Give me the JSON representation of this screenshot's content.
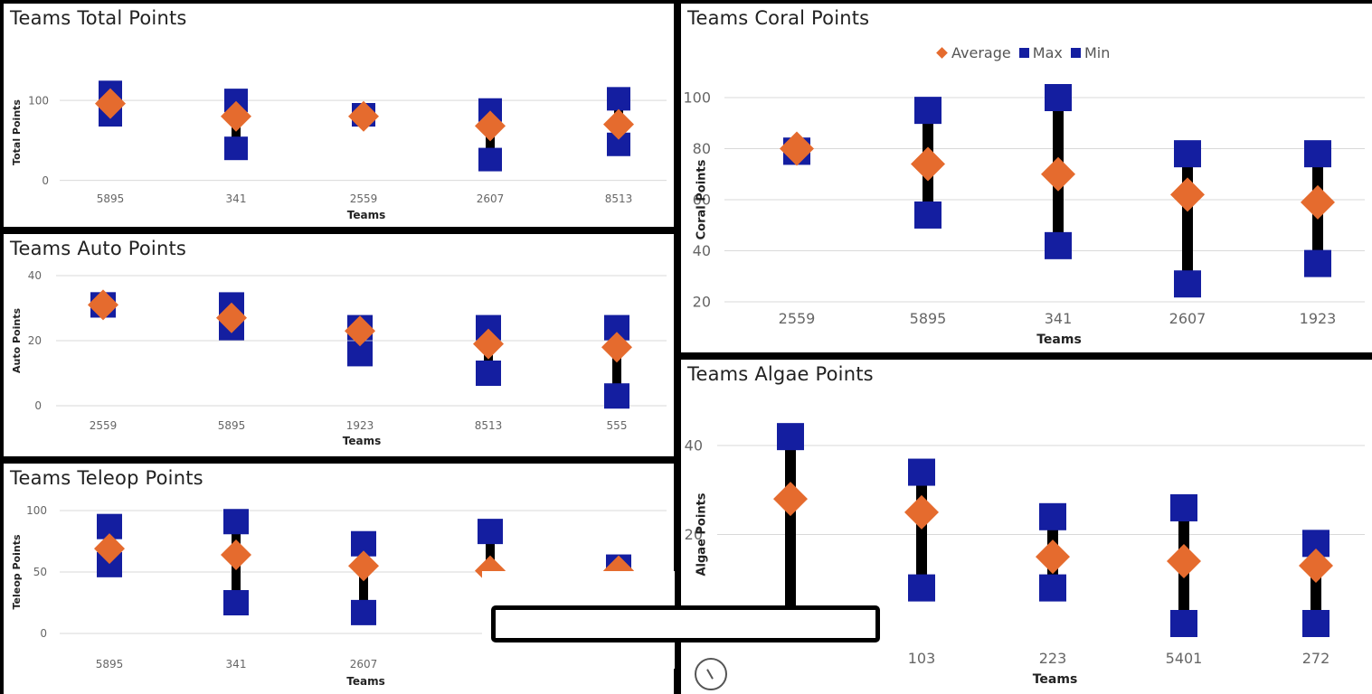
{
  "colors": {
    "average": "#e56b2e",
    "range": "#141ea0",
    "whisker": "#000000"
  },
  "legend": {
    "average_label": "Average",
    "max_label": "Max",
    "min_label": "Min"
  },
  "chart_data": [
    {
      "id": "total",
      "type": "scatter",
      "title": "Teams Total Points",
      "xlabel": "Teams",
      "ylabel": "Total Points",
      "yticks": [
        0,
        100
      ],
      "ylim": [
        -5,
        125
      ],
      "categories": [
        "5895",
        "341",
        "2559",
        "2607",
        "8513"
      ],
      "series": [
        {
          "name": "Average",
          "values": [
            96,
            80,
            80,
            68,
            70
          ]
        },
        {
          "name": "Max",
          "values": [
            110,
            100,
            82,
            88,
            102
          ]
        },
        {
          "name": "Min",
          "values": [
            82,
            40,
            82,
            26,
            45
          ]
        }
      ]
    },
    {
      "id": "auto",
      "type": "scatter",
      "title": "Teams Auto Points",
      "xlabel": "Teams",
      "ylabel": "Auto Points",
      "yticks": [
        0,
        20,
        40
      ],
      "ylim": [
        0,
        40
      ],
      "categories": [
        "2559",
        "5895",
        "1923",
        "8513",
        "555"
      ],
      "series": [
        {
          "name": "Average",
          "values": [
            31,
            27,
            23,
            19,
            18
          ]
        },
        {
          "name": "Max",
          "values": [
            31,
            31,
            24,
            24,
            24
          ]
        },
        {
          "name": "Min",
          "values": [
            31,
            24,
            16,
            10,
            3
          ]
        }
      ]
    },
    {
      "id": "teleop",
      "type": "scatter",
      "title": "Teams Teleop Points",
      "xlabel": "Teams",
      "ylabel": "Teleop Points",
      "yticks": [
        0,
        50,
        100
      ],
      "ylim": [
        0,
        100
      ],
      "categories": [
        "5895",
        "341",
        "2607",
        "",
        ""
      ],
      "series": [
        {
          "name": "Average",
          "values": [
            69,
            64,
            55,
            51,
            51
          ]
        },
        {
          "name": "Max",
          "values": [
            87,
            91,
            73,
            83,
            54
          ]
        },
        {
          "name": "Min",
          "values": [
            56,
            25,
            17,
            null,
            null
          ]
        }
      ]
    },
    {
      "id": "coral",
      "type": "scatter",
      "title": "Teams Coral Points",
      "xlabel": "Teams",
      "ylabel": "Coral Points",
      "yticks": [
        20,
        40,
        60,
        80,
        100
      ],
      "ylim": [
        20,
        100
      ],
      "categories": [
        "2559",
        "5895",
        "341",
        "2607",
        "1923"
      ],
      "series": [
        {
          "name": "Average",
          "values": [
            80,
            74,
            70,
            62,
            59
          ]
        },
        {
          "name": "Max",
          "values": [
            79,
            95,
            100,
            78,
            78
          ]
        },
        {
          "name": "Min",
          "values": [
            79,
            54,
            42,
            27,
            35
          ]
        }
      ]
    },
    {
      "id": "algae",
      "type": "scatter",
      "title": "Teams Algae Points",
      "xlabel": "Teams",
      "ylabel": "Algae Points",
      "yticks": [
        20,
        40
      ],
      "ylim": [
        0,
        40
      ],
      "categories": [
        "",
        "103",
        "223",
        "5401",
        "272"
      ],
      "series": [
        {
          "name": "Average",
          "values": [
            28,
            25,
            15,
            14,
            13
          ]
        },
        {
          "name": "Max",
          "values": [
            42,
            34,
            24,
            26,
            18
          ]
        },
        {
          "name": "Min",
          "values": [
            null,
            8,
            8,
            0,
            0
          ]
        }
      ]
    }
  ]
}
